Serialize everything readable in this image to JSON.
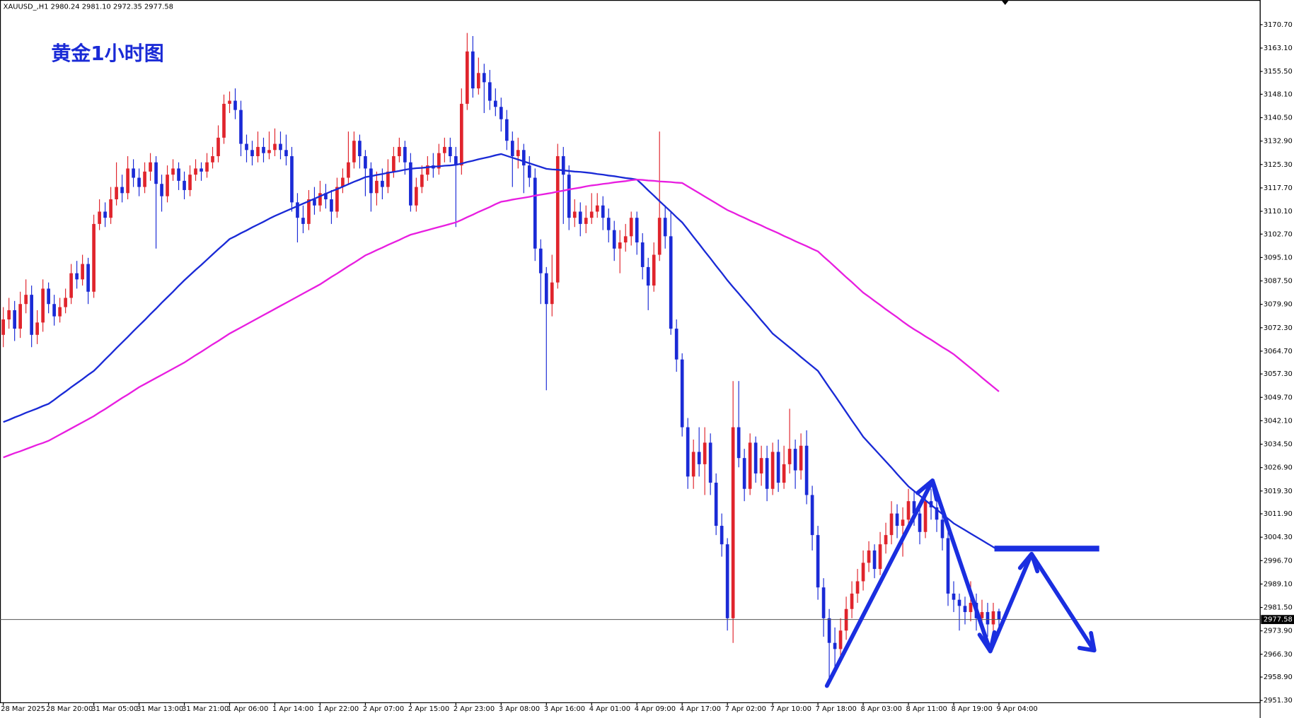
{
  "chart_data": {
    "type": "candlestick",
    "header": "XAUUSD_,H1  2980.24 2981.10 2972.35 2977.58",
    "title": "黄金1小时图",
    "up_color": "#e0242c",
    "down_color": "#1a2ad6",
    "categories": [
      "28 Mar 2025",
      null,
      null,
      null,
      null,
      null,
      null,
      null,
      "28 Mar 20:00",
      null,
      null,
      null,
      null,
      null,
      null,
      null,
      "31 Mar 05:00",
      null,
      null,
      null,
      null,
      null,
      null,
      null,
      "31 Mar 13:00",
      null,
      null,
      null,
      null,
      null,
      null,
      null,
      "31 Mar 21:00",
      null,
      null,
      null,
      null,
      null,
      null,
      null,
      "1 Apr 06:00",
      null,
      null,
      null,
      null,
      null,
      null,
      null,
      "1 Apr 14:00",
      null,
      null,
      null,
      null,
      null,
      null,
      null,
      "1 Apr 22:00",
      null,
      null,
      null,
      null,
      null,
      null,
      null,
      "2 Apr 07:00",
      null,
      null,
      null,
      null,
      null,
      null,
      null,
      "2 Apr 15:00",
      null,
      null,
      null,
      null,
      null,
      null,
      null,
      "2 Apr 23:00",
      null,
      null,
      null,
      null,
      null,
      null,
      null,
      "3 Apr 08:00",
      null,
      null,
      null,
      null,
      null,
      null,
      null,
      "3 Apr 16:00",
      null,
      null,
      null,
      null,
      null,
      null,
      null,
      "4 Apr 01:00",
      null,
      null,
      null,
      null,
      null,
      null,
      null,
      "4 Apr 09:00",
      null,
      null,
      null,
      null,
      null,
      null,
      null,
      "4 Apr 17:00",
      null,
      null,
      null,
      null,
      null,
      null,
      null,
      "7 Apr 02:00",
      null,
      null,
      null,
      null,
      null,
      null,
      null,
      "7 Apr 10:00",
      null,
      null,
      null,
      null,
      null,
      null,
      null,
      "7 Apr 18:00",
      null,
      null,
      null,
      null,
      null,
      null,
      null,
      "8 Apr 03:00",
      null,
      null,
      null,
      null,
      null,
      null,
      null,
      "8 Apr 11:00",
      null,
      null,
      null,
      null,
      null,
      null,
      null,
      "8 Apr 19:00",
      null,
      null,
      null,
      null,
      null,
      null,
      null,
      "9 Apr 04:00"
    ],
    "open": [
      3070,
      3075,
      3078,
      3072,
      3080,
      3083,
      3070,
      3074,
      3085,
      3080,
      3076,
      3079,
      3082,
      3090,
      3088,
      3093,
      3084,
      3106,
      3110,
      3108,
      3114,
      3118,
      3116,
      3124,
      3121,
      3118,
      3123,
      3126,
      3119,
      3115,
      3122,
      3124,
      3120,
      3117,
      3122,
      3124,
      3123,
      3126,
      3128,
      3134,
      3145,
      3146,
      3143,
      3132,
      3130,
      3128,
      3131,
      3129,
      3130,
      3132,
      3130,
      3128,
      3113,
      3108,
      3106,
      3114,
      3112,
      3116,
      3114,
      3110,
      3118,
      3121,
      3126,
      3133,
      3128,
      3124,
      3116,
      3120,
      3118,
      3123,
      3128,
      3131,
      3126,
      3112,
      3118,
      3122,
      3125,
      3124,
      3129,
      3131,
      3128,
      3125,
      3145,
      3162,
      3150,
      3155,
      3152,
      3146,
      3144,
      3140,
      3133,
      3128,
      3130,
      3125,
      3121,
      3098,
      3090,
      3080,
      3087,
      3128,
      3122,
      3108,
      3110,
      3106,
      3108,
      3110,
      3112,
      3108,
      3104,
      3098,
      3100,
      3102,
      3108,
      3100,
      3092,
      3086,
      3096,
      3108,
      3102,
      3072,
      3062,
      3040,
      3024,
      3032,
      3028,
      3035,
      3022,
      3008,
      3002,
      2978,
      3040,
      3030,
      3020,
      3035,
      3025,
      3030,
      3020,
      3032,
      3022,
      3028,
      3033,
      3026,
      3034,
      3018,
      3005,
      2988,
      2978,
      2970,
      2968,
      2974,
      2981,
      2986,
      2990,
      2996,
      3000,
      2994,
      3002,
      3005,
      3012,
      3008,
      3010,
      3016,
      3012,
      3006,
      3016,
      3014,
      3010,
      3004,
      2986,
      2984,
      2982,
      2980,
      2983,
      2978,
      2980,
      2976,
      2980.24
    ],
    "high": [
      3079,
      3082,
      3081,
      3084,
      3088,
      3086,
      3078,
      3088,
      3087,
      3083,
      3082,
      3085,
      3093,
      3094,
      3096,
      3095,
      3109,
      3114,
      3113,
      3118,
      3126,
      3122,
      3128,
      3127,
      3124,
      3126,
      3129,
      3128,
      3122,
      3125,
      3127,
      3126,
      3123,
      3125,
      3127,
      3126,
      3129,
      3131,
      3138,
      3148,
      3149,
      3150,
      3146,
      3135,
      3133,
      3136,
      3134,
      3136,
      3137,
      3136,
      3135,
      3131,
      3116,
      3112,
      3117,
      3118,
      3120,
      3119,
      3117,
      3121,
      3124,
      3136,
      3136,
      3135,
      3130,
      3126,
      3123,
      3124,
      3127,
      3131,
      3134,
      3133,
      3129,
      3121,
      3125,
      3128,
      3129,
      3132,
      3134,
      3134,
      3131,
      3150,
      3168,
      3167,
      3160,
      3158,
      3156,
      3150,
      3147,
      3143,
      3136,
      3134,
      3132,
      3128,
      3124,
      3101,
      3092,
      3096,
      3132,
      3131,
      3125,
      3114,
      3113,
      3112,
      3116,
      3116,
      3115,
      3111,
      3107,
      3104,
      3106,
      3110,
      3110,
      3103,
      3095,
      3100,
      3136,
      3112,
      3110,
      3075,
      3064,
      3043,
      3036,
      3040,
      3040,
      3038,
      3025,
      3012,
      3004,
      3055,
      3055,
      3033,
      3038,
      3037,
      3034,
      3034,
      3035,
      3036,
      3034,
      3046,
      3036,
      3038,
      3039,
      3021,
      3008,
      2991,
      2981,
      2975,
      2978,
      2985,
      2990,
      2994,
      3000,
      3003,
      3002,
      3006,
      3009,
      3016,
      3015,
      3014,
      3020,
      3019,
      3015,
      3019,
      3020,
      3017,
      3013,
      3006,
      2990,
      2986,
      2985,
      2990,
      2986,
      2984,
      2983,
      2983,
      2981.1
    ],
    "low": [
      3066,
      3072,
      3068,
      3069,
      3077,
      3066,
      3067,
      3071,
      3077,
      3073,
      3074,
      3077,
      3080,
      3085,
      3086,
      3080,
      3082,
      3104,
      3105,
      3106,
      3112,
      3113,
      3114,
      3118,
      3115,
      3116,
      3120,
      3098,
      3110,
      3113,
      3120,
      3117,
      3114,
      3115,
      3120,
      3120,
      3121,
      3124,
      3126,
      3132,
      3142,
      3140,
      3128,
      3126,
      3125,
      3126,
      3126,
      3127,
      3128,
      3127,
      3125,
      3110,
      3100,
      3103,
      3104,
      3109,
      3110,
      3111,
      3106,
      3108,
      3116,
      3119,
      3124,
      3124,
      3115,
      3110,
      3112,
      3114,
      3116,
      3121,
      3126,
      3122,
      3110,
      3110,
      3116,
      3120,
      3121,
      3122,
      3126,
      3126,
      3105,
      3122,
      3143,
      3147,
      3148,
      3142,
      3143,
      3141,
      3136,
      3130,
      3118,
      3124,
      3116,
      3118,
      3094,
      3080,
      3052,
      3076,
      3085,
      3106,
      3104,
      3105,
      3102,
      3103,
      3106,
      3108,
      3104,
      3100,
      3094,
      3090,
      3097,
      3099,
      3096,
      3088,
      3078,
      3084,
      3094,
      3098,
      3070,
      3058,
      3037,
      3020,
      3020,
      3024,
      3018,
      3018,
      3005,
      2998,
      2974,
      2970,
      3027,
      3016,
      3018,
      3022,
      3021,
      3016,
      3018,
      3019,
      3020,
      3025,
      3020,
      3023,
      3015,
      3000,
      2984,
      2972,
      2957,
      2962,
      2964,
      2971,
      2978,
      2983,
      2987,
      2993,
      2991,
      2992,
      2999,
      3002,
      3004,
      2998,
      3007,
      3008,
      3002,
      3004,
      3010,
      3006,
      3000,
      2982,
      2980,
      2974,
      2976,
      2977,
      2974,
      2975,
      2972,
      2974,
      2972.35
    ],
    "close": [
      3075,
      3078,
      3072,
      3080,
      3083,
      3070,
      3074,
      3085,
      3080,
      3076,
      3079,
      3082,
      3090,
      3088,
      3093,
      3084,
      3106,
      3110,
      3108,
      3114,
      3118,
      3116,
      3124,
      3121,
      3118,
      3123,
      3126,
      3119,
      3115,
      3122,
      3124,
      3120,
      3117,
      3122,
      3124,
      3123,
      3126,
      3128,
      3134,
      3145,
      3146,
      3143,
      3132,
      3130,
      3128,
      3131,
      3129,
      3130,
      3132,
      3130,
      3128,
      3113,
      3108,
      3106,
      3114,
      3112,
      3116,
      3114,
      3110,
      3118,
      3121,
      3126,
      3133,
      3128,
      3124,
      3116,
      3120,
      3118,
      3123,
      3128,
      3131,
      3126,
      3112,
      3118,
      3122,
      3125,
      3124,
      3129,
      3131,
      3128,
      3125,
      3145,
      3162,
      3150,
      3155,
      3152,
      3146,
      3144,
      3140,
      3133,
      3128,
      3130,
      3125,
      3121,
      3098,
      3090,
      3080,
      3087,
      3128,
      3122,
      3108,
      3110,
      3106,
      3108,
      3110,
      3112,
      3108,
      3104,
      3098,
      3100,
      3102,
      3108,
      3100,
      3092,
      3086,
      3096,
      3108,
      3102,
      3072,
      3062,
      3040,
      3024,
      3032,
      3028,
      3035,
      3022,
      3008,
      3002,
      2978,
      3040,
      3030,
      3020,
      3035,
      3025,
      3030,
      3020,
      3032,
      3022,
      3028,
      3033,
      3026,
      3034,
      3018,
      3005,
      2988,
      2978,
      2970,
      2968,
      2974,
      2981,
      2986,
      2990,
      2996,
      3000,
      2994,
      3002,
      3005,
      3012,
      3008,
      3010,
      3016,
      3012,
      3006,
      3016,
      3014,
      3010,
      3004,
      2986,
      2984,
      2982,
      2980,
      2983,
      2978,
      2980,
      2976,
      2980.24,
      2977.58
    ],
    "lines": [
      {
        "color": "#1a2ad6",
        "values": [
          3041.7,
          3042.4,
          3043.2,
          3043.9,
          3044.7,
          3045.4,
          3046.1,
          3046.9,
          3047.6,
          3048.9,
          3050.3,
          3051.6,
          3053.0,
          3054.3,
          3055.6,
          3057.0,
          3058.3,
          3060.1,
          3062.0,
          3063.8,
          3065.7,
          3067.5,
          3069.3,
          3071.2,
          3073.0,
          3074.8,
          3076.7,
          3078.5,
          3080.4,
          3082.2,
          3084.0,
          3085.9,
          3087.7,
          3089.4,
          3091.1,
          3092.7,
          3094.4,
          3096.1,
          3097.8,
          3099.4,
          3101.1,
          3102.0,
          3103.0,
          3103.9,
          3104.9,
          3105.8,
          3106.7,
          3107.7,
          3108.6,
          3109.4,
          3110.2,
          3111.0,
          3111.8,
          3112.6,
          3113.4,
          3114.2,
          3115.0,
          3115.8,
          3116.6,
          3117.3,
          3118.1,
          3118.9,
          3119.7,
          3120.4,
          3121.2,
          3121.5,
          3121.9,
          3122.2,
          3122.6,
          3122.9,
          3123.2,
          3123.6,
          3123.9,
          3124.1,
          3124.2,
          3124.4,
          3124.6,
          3124.7,
          3124.9,
          3125.0,
          3125.2,
          3125.6,
          3126.1,
          3126.5,
          3127.0,
          3127.4,
          3127.8,
          3128.3,
          3128.7,
          3128.1,
          3127.5,
          3126.9,
          3126.3,
          3125.7,
          3125.1,
          3124.5,
          3123.9,
          3123.7,
          3123.6,
          3123.4,
          3123.2,
          3123.0,
          3122.9,
          3122.7,
          3122.5,
          3122.2,
          3122.0,
          3121.7,
          3121.5,
          3121.2,
          3120.9,
          3120.7,
          3120.4,
          3118.7,
          3116.9,
          3115.2,
          3113.4,
          3111.7,
          3110.0,
          3108.2,
          3106.5,
          3104.2,
          3101.8,
          3099.5,
          3097.1,
          3094.8,
          3092.4,
          3090.1,
          3087.7,
          3085.5,
          3083.4,
          3081.2,
          3079.1,
          3076.9,
          3074.7,
          3072.6,
          3070.4,
          3068.9,
          3067.4,
          3065.9,
          3064.4,
          3062.8,
          3061.3,
          3059.8,
          3058.3,
          3055.6,
          3052.9,
          3050.3,
          3047.6,
          3044.9,
          3042.2,
          3039.6,
          3036.9,
          3034.9,
          3032.9,
          3030.9,
          3028.9,
          3026.9,
          3024.8,
          3022.8,
          3020.8,
          3019.3,
          3017.8,
          3016.3,
          3014.8,
          3013.3,
          3011.8,
          3010.3,
          3008.8,
          3007.7,
          3006.6,
          3005.5,
          3004.4,
          3003.3,
          3002.2,
          3001.1,
          3000.0
        ]
      },
      {
        "color": "#e81ee0",
        "values": [
          3030.2,
          3030.9,
          3031.6,
          3032.2,
          3032.9,
          3033.6,
          3034.3,
          3034.9,
          3035.6,
          3036.6,
          3037.6,
          3038.6,
          3039.6,
          3040.6,
          3041.6,
          3042.6,
          3043.6,
          3044.8,
          3045.9,
          3047.1,
          3048.3,
          3049.5,
          3050.6,
          3051.8,
          3053.0,
          3054.0,
          3055.0,
          3056.0,
          3057.0,
          3058.0,
          3059.0,
          3060.0,
          3061.0,
          3062.2,
          3063.4,
          3064.5,
          3065.7,
          3066.9,
          3068.0,
          3069.2,
          3070.4,
          3071.4,
          3072.4,
          3073.4,
          3074.4,
          3075.4,
          3076.4,
          3077.4,
          3078.4,
          3079.4,
          3080.4,
          3081.4,
          3082.4,
          3083.4,
          3084.4,
          3085.4,
          3086.4,
          3087.6,
          3088.8,
          3089.9,
          3091.1,
          3092.3,
          3093.4,
          3094.6,
          3095.8,
          3096.6,
          3097.5,
          3098.3,
          3099.2,
          3100.0,
          3100.8,
          3101.7,
          3102.5,
          3103.0,
          3103.5,
          3104.0,
          3104.5,
          3105.0,
          3105.5,
          3106.0,
          3106.5,
          3107.3,
          3108.2,
          3109.0,
          3109.9,
          3110.7,
          3111.5,
          3112.4,
          3113.2,
          3113.5,
          3113.9,
          3114.2,
          3114.5,
          3114.8,
          3115.2,
          3115.5,
          3115.8,
          3116.1,
          3116.5,
          3116.8,
          3117.2,
          3117.5,
          3117.8,
          3118.2,
          3118.5,
          3118.7,
          3119.0,
          3119.2,
          3119.5,
          3119.7,
          3119.9,
          3120.2,
          3120.4,
          3120.3,
          3120.1,
          3120.0,
          3119.8,
          3119.7,
          3119.6,
          3119.4,
          3119.3,
          3118.2,
          3117.1,
          3116.0,
          3114.9,
          3113.8,
          3112.7,
          3111.6,
          3110.5,
          3109.7,
          3108.8,
          3108.0,
          3107.1,
          3106.3,
          3105.5,
          3104.6,
          3103.8,
          3103.0,
          3102.1,
          3101.3,
          3100.4,
          3099.6,
          3098.8,
          3097.9,
          3097.1,
          3095.4,
          3093.8,
          3092.1,
          3090.4,
          3088.7,
          3087.1,
          3085.4,
          3083.7,
          3082.4,
          3081.0,
          3079.7,
          3078.3,
          3077.0,
          3075.7,
          3074.3,
          3073.0,
          3071.8,
          3070.7,
          3069.5,
          3068.4,
          3067.2,
          3066.0,
          3064.9,
          3063.7,
          3062.2,
          3060.7,
          3059.2,
          3057.7,
          3056.1,
          3054.6,
          3053.1,
          3051.6
        ]
      }
    ],
    "current_price": {
      "value": 2977.58,
      "label": "2977.58"
    },
    "ylim": [
      2950.7,
      3178.7
    ],
    "yticks": [
      {
        "value": 3170.7,
        "label": "3170.70"
      },
      {
        "value": 3163.1,
        "label": "3163.10"
      },
      {
        "value": 3155.5,
        "label": "3155.50"
      },
      {
        "value": 3148.1,
        "label": "3148.10"
      },
      {
        "value": 3140.5,
        "label": "3140.50"
      },
      {
        "value": 3132.9,
        "label": "3132.90"
      },
      {
        "value": 3125.3,
        "label": "3125.30"
      },
      {
        "value": 3117.7,
        "label": "3117.70"
      },
      {
        "value": 3110.1,
        "label": "3110.10"
      },
      {
        "value": 3102.7,
        "label": "3102.70"
      },
      {
        "value": 3095.1,
        "label": "3095.10"
      },
      {
        "value": 3087.5,
        "label": "3087.50"
      },
      {
        "value": 3079.9,
        "label": "3079.90"
      },
      {
        "value": 3072.3,
        "label": "3072.30"
      },
      {
        "value": 3064.7,
        "label": "3064.70"
      },
      {
        "value": 3057.3,
        "label": "3057.30"
      },
      {
        "value": 3049.7,
        "label": "3049.70"
      },
      {
        "value": 3042.1,
        "label": "3042.10"
      },
      {
        "value": 3034.5,
        "label": "3034.50"
      },
      {
        "value": 3026.9,
        "label": "3026.90"
      },
      {
        "value": 3019.3,
        "label": "3019.30"
      },
      {
        "value": 3011.9,
        "label": "3011.90"
      },
      {
        "value": 3004.3,
        "label": "3004.30"
      },
      {
        "value": 2996.7,
        "label": "2996.70"
      },
      {
        "value": 2989.1,
        "label": "2989.10"
      },
      {
        "value": 2981.5,
        "label": "2981.50"
      },
      {
        "value": 2973.9,
        "label": "2973.90"
      },
      {
        "value": 2966.3,
        "label": "2966.30"
      },
      {
        "value": 2958.9,
        "label": "2958.90"
      },
      {
        "value": 2951.3,
        "label": "2951.30"
      }
    ],
    "grid": false
  }
}
